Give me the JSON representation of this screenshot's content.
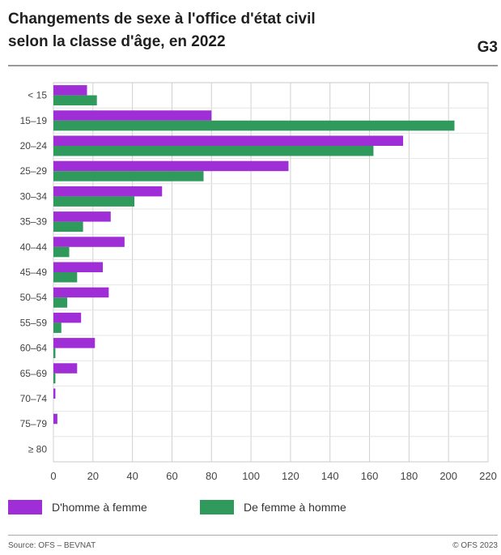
{
  "header": {
    "title_line1": "Changements de sexe à l'office d'état civil",
    "title_line2": "selon la classe d'âge, en 2022",
    "figure_id": "G3"
  },
  "chart_data": {
    "type": "bar",
    "orientation": "horizontal",
    "categories": [
      "< 15",
      "15–19",
      "20–24",
      "25–29",
      "30–34",
      "35–39",
      "40–44",
      "45–49",
      "50–54",
      "55–59",
      "60–64",
      "65–69",
      "70–74",
      "75–79",
      "≥ 80"
    ],
    "series": [
      {
        "name": "D'homme à femme",
        "color": "#a02ed6",
        "values": [
          17,
          80,
          177,
          119,
          55,
          29,
          36,
          25,
          28,
          14,
          21,
          12,
          1,
          2,
          0
        ]
      },
      {
        "name": "De femme à homme",
        "color": "#2f9a5b",
        "values": [
          22,
          203,
          162,
          76,
          41,
          15,
          8,
          12,
          7,
          4,
          1,
          1,
          0,
          0,
          0
        ]
      }
    ],
    "xlim": [
      0,
      220
    ],
    "xticks": [
      0,
      20,
      40,
      60,
      80,
      100,
      120,
      140,
      160,
      180,
      200,
      220
    ],
    "xtick_labels": [
      "0",
      "20",
      "40",
      "60",
      "80",
      "100",
      "120",
      "140",
      "160",
      "180",
      "200",
      "220"
    ],
    "grid": true,
    "legend_position": "bottom"
  },
  "footer": {
    "source": "Source: OFS – BEVNAT",
    "copyright": "© OFS 2023"
  }
}
